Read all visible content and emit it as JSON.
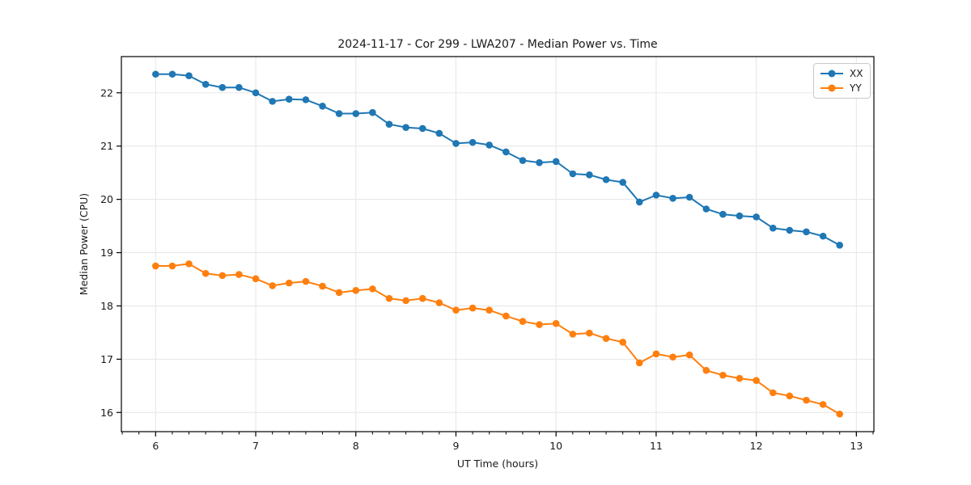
{
  "chart_data": {
    "type": "line",
    "title": "2024-11-17 - Cor 299 - LWA207 - Median Power vs. Time",
    "xlabel": "UT Time (hours)",
    "ylabel": "Median Power (CPU)",
    "xlim": [
      5.658,
      13.175
    ],
    "ylim": [
      15.64,
      22.68
    ],
    "xticks": [
      6,
      7,
      8,
      9,
      10,
      11,
      12,
      13
    ],
    "yticks": [
      16,
      17,
      18,
      19,
      20,
      21,
      22
    ],
    "x_minor_step": 0.1666667,
    "grid": true,
    "legend_position": "upper right",
    "colors": {
      "XX": "#1f77b4",
      "YY": "#ff7f0e",
      "grid": "#e6e6e6",
      "spine": "#000000",
      "text": "#1a1a1a"
    },
    "x": [
      6.0,
      6.167,
      6.333,
      6.5,
      6.667,
      6.833,
      7.0,
      7.167,
      7.333,
      7.5,
      7.667,
      7.833,
      8.0,
      8.167,
      8.333,
      8.5,
      8.667,
      8.833,
      9.0,
      9.167,
      9.333,
      9.5,
      9.667,
      9.833,
      10.0,
      10.167,
      10.333,
      10.5,
      10.667,
      10.833,
      11.0,
      11.167,
      11.333,
      11.5,
      11.667,
      11.833,
      12.0,
      12.167,
      12.333,
      12.5,
      12.667,
      12.833
    ],
    "series": [
      {
        "name": "XX",
        "color_key": "XX",
        "values": [
          22.35,
          22.35,
          22.32,
          22.16,
          22.1,
          22.1,
          22.0,
          21.84,
          21.88,
          21.87,
          21.75,
          21.61,
          21.61,
          21.63,
          21.41,
          21.35,
          21.33,
          21.24,
          21.05,
          21.07,
          21.02,
          20.89,
          20.73,
          20.69,
          20.71,
          20.48,
          20.46,
          20.37,
          20.32,
          19.95,
          20.08,
          20.02,
          20.04,
          19.82,
          19.72,
          19.69,
          19.67,
          19.46,
          19.42,
          19.39,
          19.31,
          19.14
        ]
      },
      {
        "name": "YY",
        "color_key": "YY",
        "values": [
          18.75,
          18.75,
          18.79,
          18.61,
          18.57,
          18.59,
          18.51,
          18.38,
          18.43,
          18.46,
          18.37,
          18.25,
          18.29,
          18.32,
          18.14,
          18.1,
          18.14,
          18.06,
          17.92,
          17.96,
          17.92,
          17.81,
          17.71,
          17.65,
          17.67,
          17.47,
          17.49,
          17.39,
          17.32,
          16.93,
          17.1,
          17.04,
          17.08,
          16.79,
          16.7,
          16.64,
          16.6,
          16.37,
          16.31,
          16.23,
          16.15,
          15.97
        ]
      }
    ]
  },
  "legend": {
    "items": [
      {
        "label": "XX"
      },
      {
        "label": "YY"
      }
    ]
  }
}
